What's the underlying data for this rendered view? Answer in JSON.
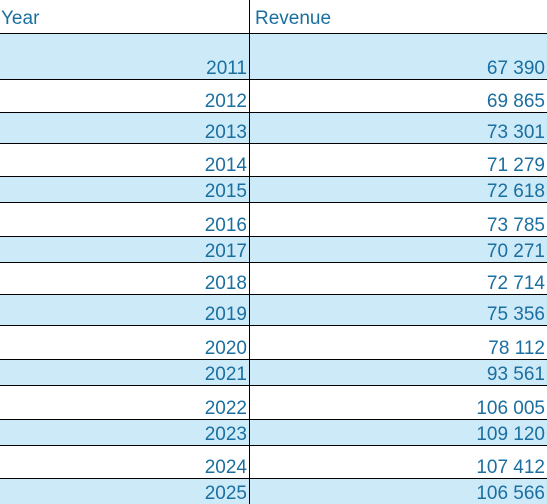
{
  "table": {
    "headers": {
      "year": "Year",
      "revenue": "Revenue"
    },
    "rows": [
      {
        "year": "2011",
        "revenue": "67 390"
      },
      {
        "year": "2012",
        "revenue": "69 865"
      },
      {
        "year": "2013",
        "revenue": "73 301"
      },
      {
        "year": "2014",
        "revenue": "71 279"
      },
      {
        "year": "2015",
        "revenue": "72 618"
      },
      {
        "year": "2016",
        "revenue": "73 785"
      },
      {
        "year": "2017",
        "revenue": "70 271"
      },
      {
        "year": "2018",
        "revenue": "72 714"
      },
      {
        "year": "2019",
        "revenue": "75 356"
      },
      {
        "year": "2020",
        "revenue": "78 112"
      },
      {
        "year": "2021",
        "revenue": "93 561"
      },
      {
        "year": "2022",
        "revenue": "106 005"
      },
      {
        "year": "2023",
        "revenue": "109 120"
      },
      {
        "year": "2024",
        "revenue": "107 412"
      },
      {
        "year": "2025",
        "revenue": "106 566"
      }
    ]
  },
  "colors": {
    "text": "#1a6fa0",
    "shaded_row": "#cdeaf8",
    "plain_row": "#ffffff",
    "grid": "#000000"
  }
}
